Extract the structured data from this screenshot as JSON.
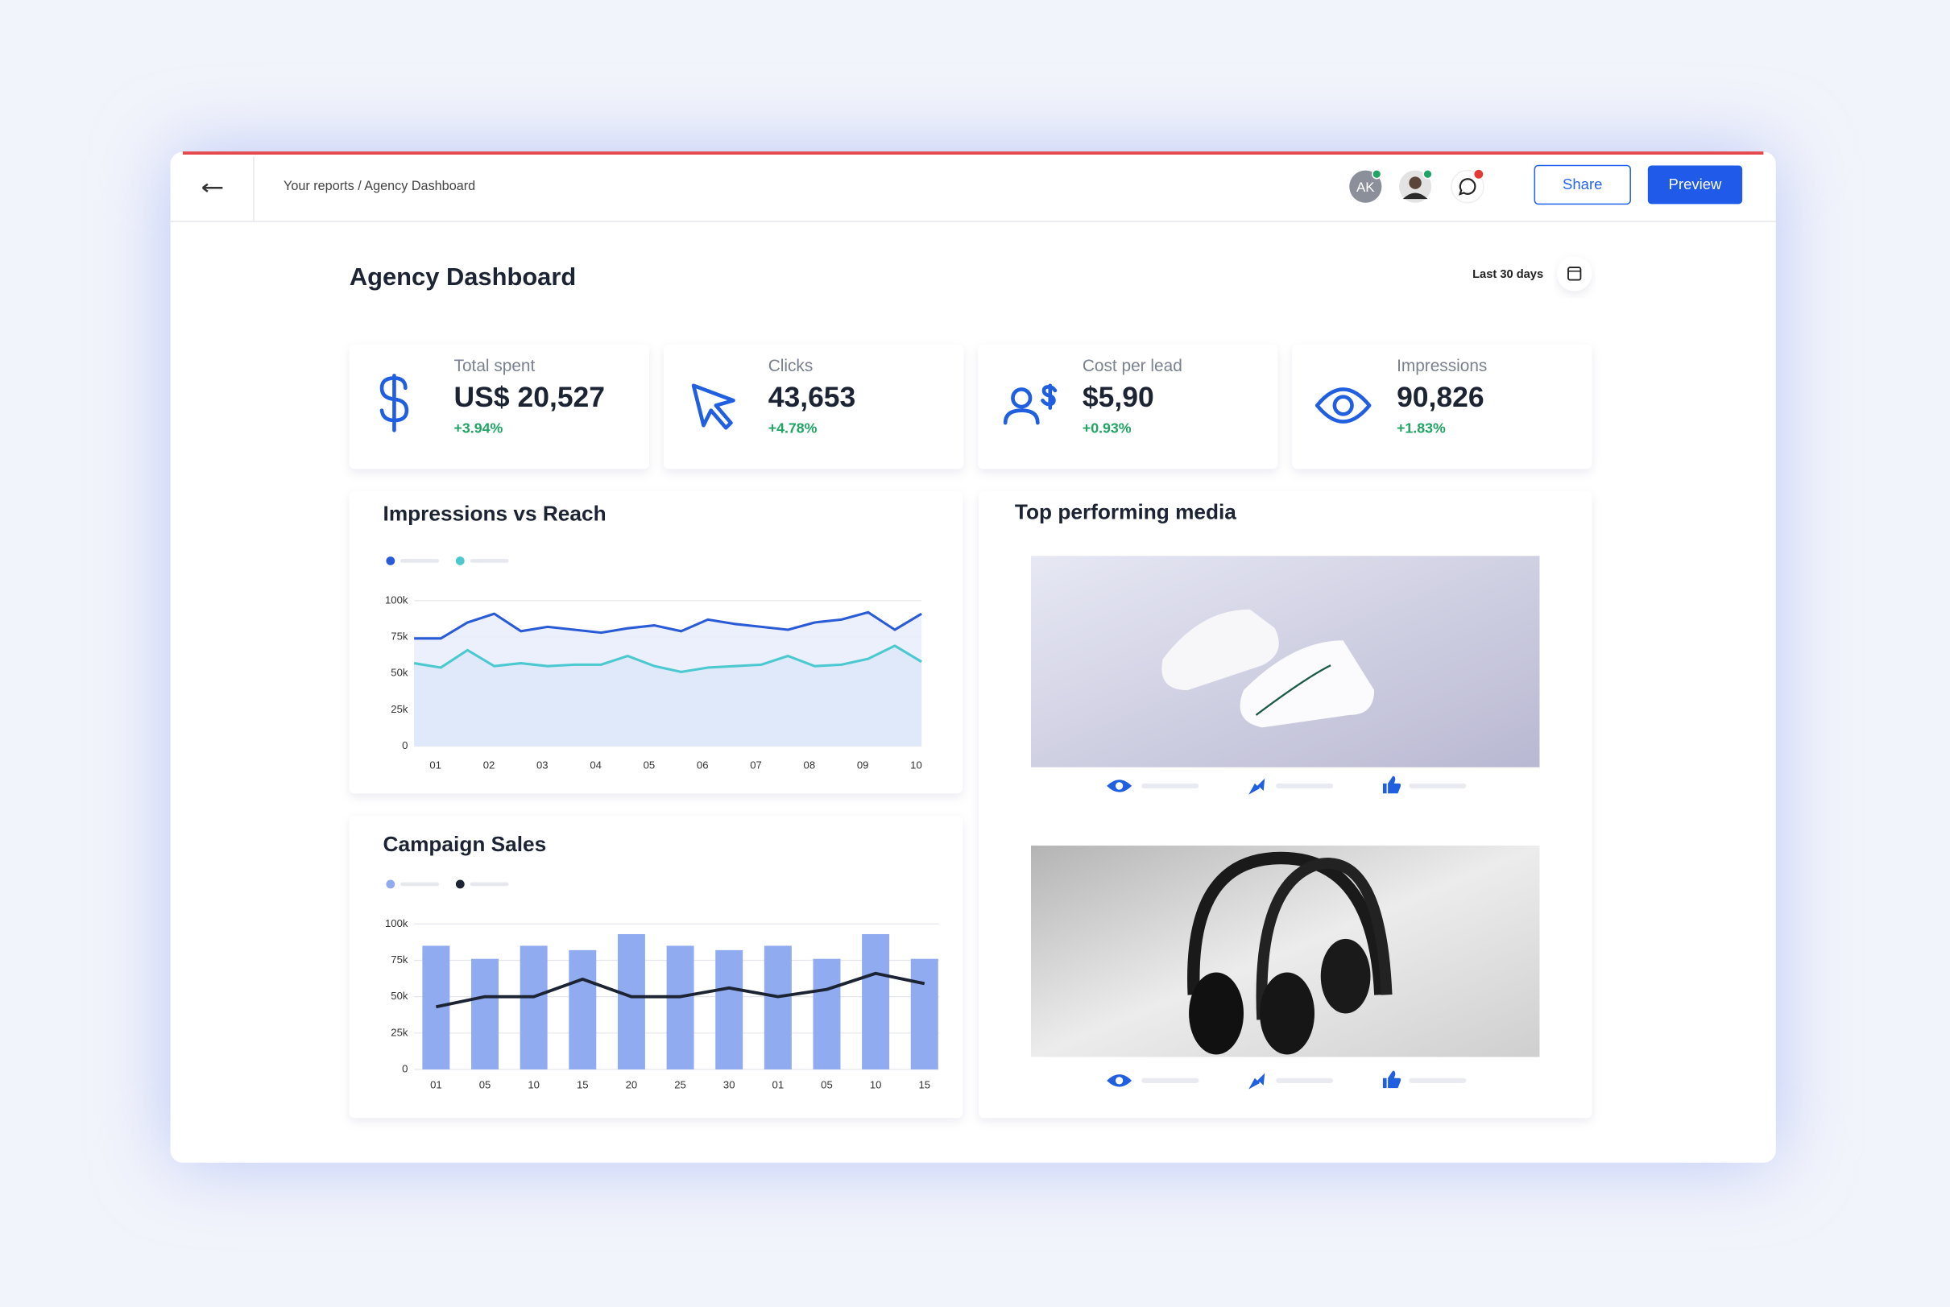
{
  "header": {
    "breadcrumb": "Your reports / Agency Dashboard",
    "avatar": "AK",
    "share": "Share",
    "preview": "Preview"
  },
  "page": {
    "title": "Agency Dashboard",
    "date_range": "Last 30 days"
  },
  "kpis": [
    {
      "label": "Total spent",
      "value": "US$ 20,527",
      "change": "+3.94%"
    },
    {
      "label": "Clicks",
      "value": "43,653",
      "change": "+4.78%"
    },
    {
      "label": "Cost per lead",
      "value": "$5,90",
      "change": "+0.93%"
    },
    {
      "label": "Impressions",
      "value": "90,826",
      "change": "+1.83%"
    }
  ],
  "media": {
    "title": "Top performing media"
  },
  "chart_data": [
    {
      "type": "line",
      "title": "Impressions vs Reach",
      "area": true,
      "x": [
        0.6,
        1.1,
        1.6,
        2.1,
        2.6,
        3.1,
        3.6,
        4.1,
        4.6,
        5.1,
        5.6,
        6.1,
        6.6,
        7.1,
        7.6,
        8.1,
        8.6,
        9.1,
        9.6,
        10.1
      ],
      "xlim": [
        0.6,
        10.1
      ],
      "xticks": [
        {
          "value": 1,
          "label": "01"
        },
        {
          "value": 2,
          "label": "02"
        },
        {
          "value": 3,
          "label": "03"
        },
        {
          "value": 4,
          "label": "04"
        },
        {
          "value": 5,
          "label": "05"
        },
        {
          "value": 6,
          "label": "06"
        },
        {
          "value": 7,
          "label": "07"
        },
        {
          "value": 8,
          "label": "08"
        },
        {
          "value": 9,
          "label": "09"
        },
        {
          "value": 10,
          "label": "10"
        }
      ],
      "ylim": [
        0,
        100000
      ],
      "yticks": [
        0,
        {
          "value": 25000,
          "label": "25k"
        },
        {
          "value": 50000,
          "label": "50k"
        },
        {
          "value": 75000,
          "label": "75k"
        },
        {
          "value": 100000,
          "label": "100k"
        }
      ],
      "grid": true,
      "series": [
        {
          "color": "#2a5bd7",
          "fill": "#e9edfb",
          "values": [
            74000,
            74000,
            85000,
            91000,
            79000,
            82000,
            80000,
            78000,
            81000,
            83000,
            79000,
            87000,
            84000,
            82000,
            80000,
            85000,
            87000,
            92000,
            80000,
            91000
          ]
        },
        {
          "color": "#4cc9d0",
          "fill": "#dde7f8",
          "values": [
            57000,
            54000,
            66000,
            55000,
            57000,
            55000,
            56000,
            56000,
            62000,
            55000,
            51000,
            54000,
            55000,
            56000,
            62000,
            55000,
            56000,
            60000,
            69000,
            58000
          ]
        }
      ]
    },
    {
      "type": "bar",
      "title": "Campaign Sales",
      "categories": [
        "01",
        "05",
        "10",
        "15",
        "20",
        "25",
        "30",
        "01",
        "05",
        "10",
        "15"
      ],
      "ylim": [
        0,
        100000
      ],
      "yticks": [
        0,
        {
          "value": 25000,
          "label": "25k"
        },
        {
          "value": 50000,
          "label": "50k"
        },
        {
          "value": 75000,
          "label": "75k"
        },
        {
          "value": 100000,
          "label": "100k"
        }
      ],
      "grid": true,
      "series": [
        {
          "type": "bar",
          "color": "#91abf1",
          "values": [
            85000,
            76000,
            85000,
            82000,
            93000,
            85000,
            82000,
            85000,
            76000,
            93000,
            76000
          ]
        },
        {
          "type": "line",
          "color": "#1c2434",
          "values": [
            43000,
            50000,
            50000,
            62000,
            50000,
            50000,
            56000,
            50000,
            55000,
            66000,
            59000
          ]
        }
      ]
    }
  ]
}
